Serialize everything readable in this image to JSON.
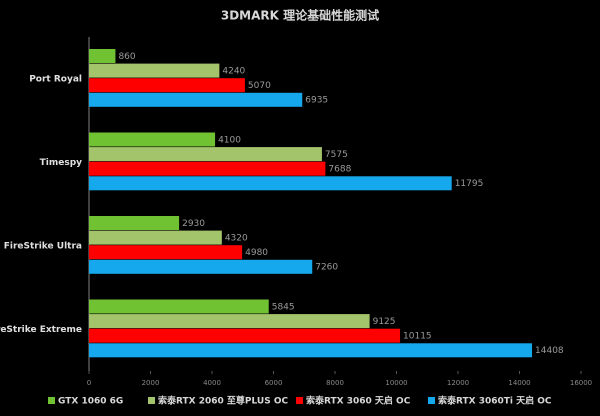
{
  "chart_data": {
    "type": "hbar",
    "title": "3DMARK 理论基础性能测试",
    "categories": [
      "Port Royal",
      "Timespy",
      "FireStrike Ultra",
      "FireStrike Extreme"
    ],
    "series": [
      {
        "name": "GTX 1060 6G",
        "color": "#70c232",
        "values": [
          860,
          4100,
          2930,
          5845
        ]
      },
      {
        "name": "索泰RTX 2060 至尊PLUS OC",
        "color": "#a4c46c",
        "values": [
          4240,
          7575,
          4320,
          9125
        ]
      },
      {
        "name": "索泰RTX 3060 天启 OC",
        "color": "#ff0000",
        "values": [
          5070,
          7688,
          4980,
          10115
        ]
      },
      {
        "name": "索泰RTX 3060Ti 天启 OC",
        "color": "#16a8ec",
        "values": [
          6935,
          11795,
          7260,
          14408
        ]
      }
    ],
    "xlim": [
      0,
      16000
    ],
    "xticks": [
      0,
      2000,
      4000,
      6000,
      8000,
      10000,
      12000,
      14000,
      16000
    ]
  }
}
